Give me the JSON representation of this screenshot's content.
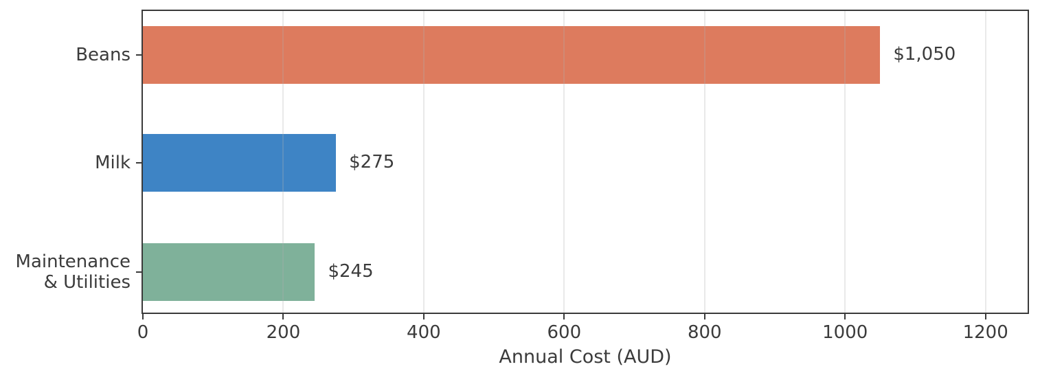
{
  "colors": {
    "background": "#FFFFFF",
    "axis_spine": "#3A3A3A",
    "text": "#3B3B3B",
    "grid": "#B0B0B0"
  },
  "chart_data": {
    "type": "bar",
    "orientation": "horizontal",
    "title": "",
    "xlabel": "Annual Cost (AUD)",
    "ylabel": "",
    "categories": [
      "Beans",
      "Milk",
      "Maintenance & Utilities"
    ],
    "category_label_lines": [
      [
        "Beans"
      ],
      [
        "Milk"
      ],
      [
        "Maintenance",
        "& Utilities"
      ]
    ],
    "values": [
      1050,
      275,
      245
    ],
    "value_labels": [
      "$1,050",
      "$275",
      "$245"
    ],
    "bar_colors": [
      "#DD7B5E",
      "#3E84C5",
      "#7FB19A"
    ],
    "xlim": [
      0,
      1260
    ],
    "xticks": [
      0,
      200,
      400,
      600,
      800,
      1000,
      1200
    ],
    "xtick_labels": [
      "0",
      "200",
      "400",
      "600",
      "800",
      "1000",
      "1200"
    ],
    "grid": true,
    "legend_position": "none"
  }
}
